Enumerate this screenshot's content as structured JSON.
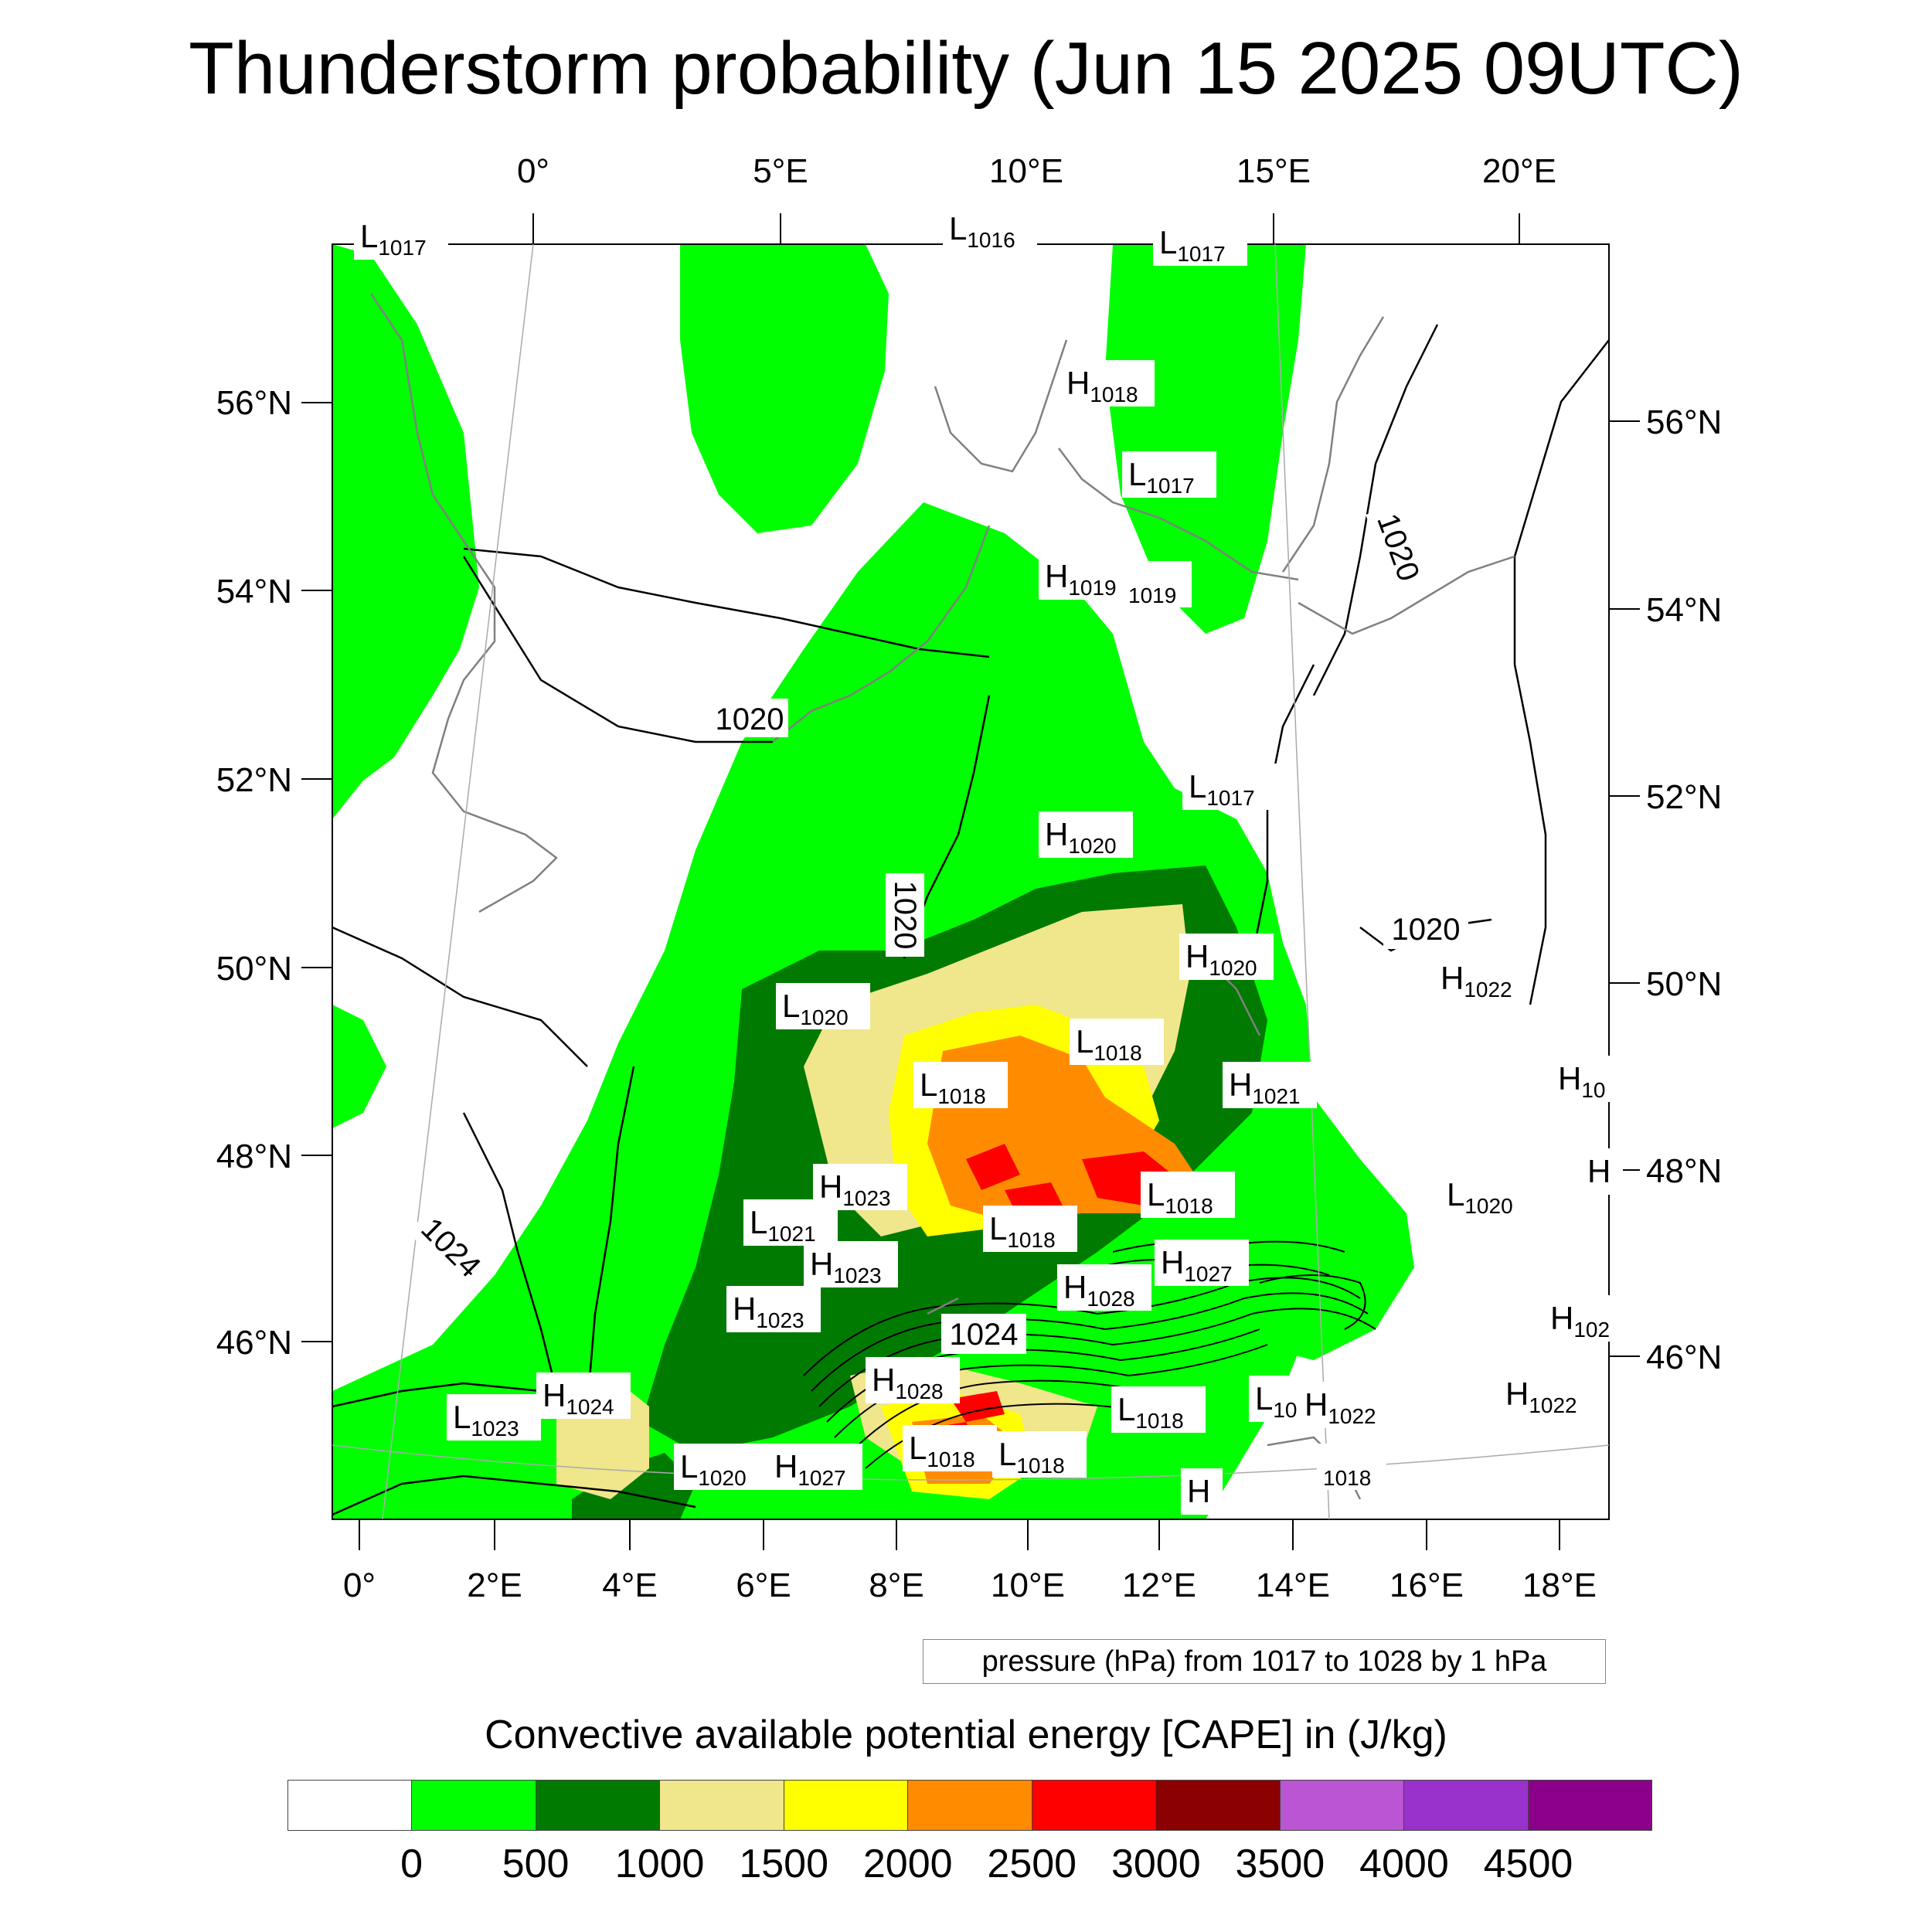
{
  "title": "Thunderstorm probability (Jun 15 2025 09UTC)",
  "top_axis_labels": [
    "0°",
    "5°E",
    "10°E",
    "15°E",
    "20°E"
  ],
  "bottom_axis_labels": [
    "0°",
    "2°E",
    "4°E",
    "6°E",
    "8°E",
    "10°E",
    "12°E",
    "14°E",
    "16°E",
    "18°E"
  ],
  "left_axis_labels": [
    "56°N",
    "54°N",
    "52°N",
    "50°N",
    "48°N",
    "46°N"
  ],
  "right_axis_labels": [
    "56°N",
    "54°N",
    "52°N",
    "50°N",
    "48°N",
    "46°N"
  ],
  "pressure_centers": [
    {
      "letter": "L",
      "value": "1017"
    },
    {
      "letter": "L",
      "value": "1016"
    },
    {
      "letter": "L",
      "value": "1017"
    },
    {
      "letter": "H",
      "value": "1018"
    },
    {
      "letter": "L",
      "value": "1017"
    },
    {
      "letter": "H",
      "value": "1019"
    },
    {
      "letter": "",
      "value": "1019"
    },
    {
      "letter": "L",
      "value": "1017"
    },
    {
      "letter": "H",
      "value": "1020"
    },
    {
      "letter": "H",
      "value": "1020"
    },
    {
      "letter": "H",
      "value": "1022"
    },
    {
      "letter": "L",
      "value": "1020"
    },
    {
      "letter": "L",
      "value": "1018"
    },
    {
      "letter": "L",
      "value": "1018"
    },
    {
      "letter": "H",
      "value": "1021"
    },
    {
      "letter": "H",
      "value": "10"
    },
    {
      "letter": "H",
      "value": "1023"
    },
    {
      "letter": "L",
      "value": "1018"
    },
    {
      "letter": "L",
      "value": "1020"
    },
    {
      "letter": "L",
      "value": "1021"
    },
    {
      "letter": "L",
      "value": "1018"
    },
    {
      "letter": "H",
      "value": "1027"
    },
    {
      "letter": "H",
      "value": "1023"
    },
    {
      "letter": "H",
      "value": "1028"
    },
    {
      "letter": "H",
      "value": "1023"
    },
    {
      "letter": "H",
      "value": "102"
    },
    {
      "letter": "H",
      "value": "1028"
    },
    {
      "letter": "H",
      "value": "1022"
    },
    {
      "letter": "H",
      "value": "1024"
    },
    {
      "letter": "L",
      "value": "1023"
    },
    {
      "letter": "L",
      "value": "1018"
    },
    {
      "letter": "L",
      "value": "10"
    },
    {
      "letter": "H",
      "value": "1022"
    },
    {
      "letter": "L",
      "value": "1018"
    },
    {
      "letter": "L",
      "value": "1018"
    },
    {
      "letter": "L",
      "value": "1020"
    },
    {
      "letter": "H",
      "value": "1027"
    },
    {
      "letter": "",
      "value": "1018"
    },
    {
      "letter": "H",
      "value": ""
    },
    {
      "letter": "H",
      "value": ""
    }
  ],
  "isobar_labels": [
    "1020",
    "1020",
    "1020",
    "1020",
    "1024",
    "1024"
  ],
  "contour_note": "pressure (hPa) from 1017 to 1028 by 1 hPa",
  "colorbar": {
    "title": "Convective available potential energy [CAPE] in (J/kg)",
    "colors": [
      "#ffffff",
      "#00ff00",
      "#007a00",
      "#f0e68c",
      "#ffff00",
      "#ff8c00",
      "#ff0000",
      "#8b0000",
      "#ba55d3",
      "#9932cc",
      "#8b008b"
    ],
    "labels": [
      "0",
      "500",
      "1000",
      "1500",
      "2000",
      "2500",
      "3000",
      "3500",
      "4000",
      "4500"
    ]
  }
}
